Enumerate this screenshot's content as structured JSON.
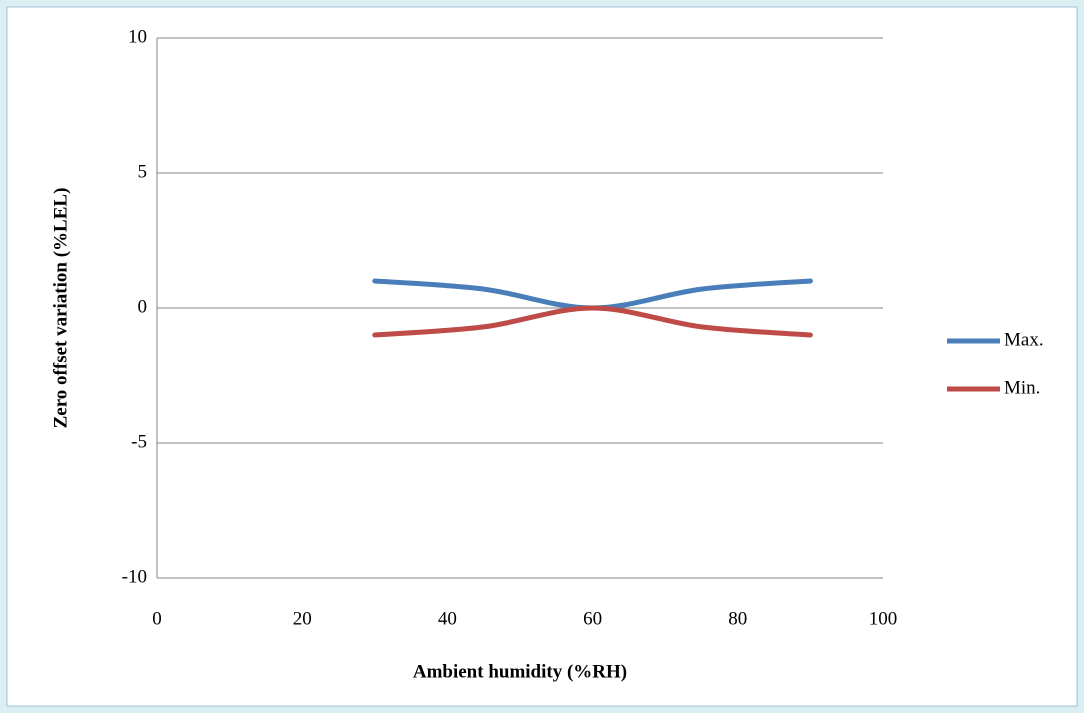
{
  "chart_data": {
    "type": "line",
    "x_label": "Ambient humidity (%RH)",
    "y_label": "Zero offset variation (%LEL)",
    "x": [
      30,
      45,
      60,
      75,
      90
    ],
    "series": [
      {
        "name": "Max.",
        "color": "#4a7ebb",
        "values": [
          1,
          0.7,
          0,
          0.7,
          1
        ]
      },
      {
        "name": "Min.",
        "color": "#be4b48",
        "values": [
          -1,
          -0.7,
          0,
          -0.7,
          -1
        ]
      }
    ],
    "xlim": [
      0,
      100
    ],
    "xticks": [
      0,
      20,
      40,
      60,
      80,
      100
    ],
    "ylim": [
      -10,
      10
    ],
    "yticks": [
      -10,
      -5,
      0,
      5,
      10
    ],
    "grid": true,
    "smooth": true,
    "legend": "right"
  }
}
